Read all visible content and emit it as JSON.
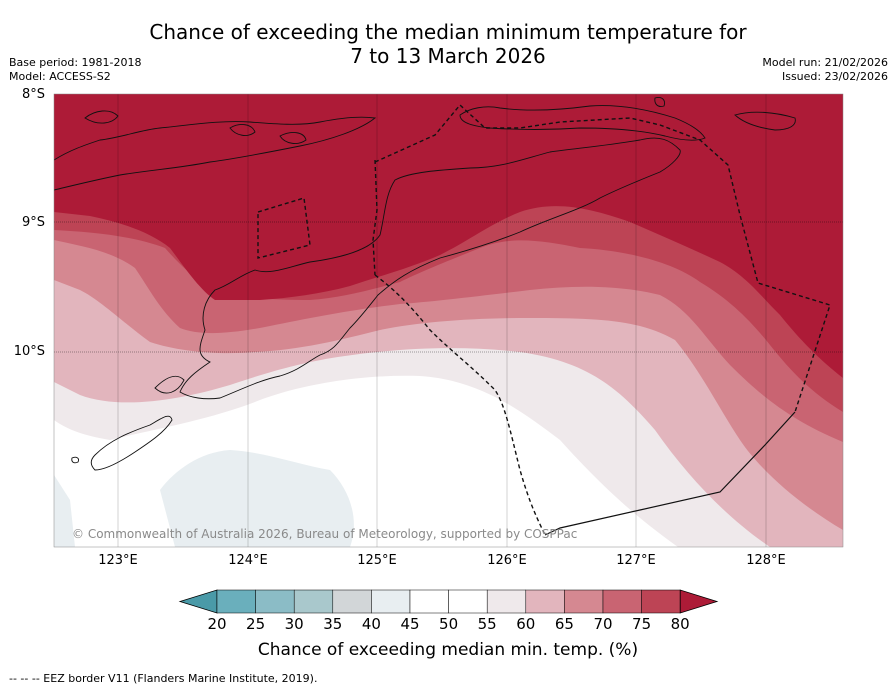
{
  "title_line1": "Chance of exceeding the median minimum temperature for",
  "title_line2": "7 to 13 March 2026",
  "meta_left": {
    "base_period": "Base period: 1981-2018",
    "model": "Model: ACCESS-S2"
  },
  "meta_right": {
    "model_run": "Model run: 21/02/2026",
    "issued": "Issued: 23/02/2026"
  },
  "lat_labels": [
    "8°S",
    "9°S",
    "10°S"
  ],
  "lon_labels": [
    "123°E",
    "124°E",
    "125°E",
    "126°E",
    "127°E",
    "128°E"
  ],
  "credit": "© Commonwealth of Australia 2026, Bureau of Meteorology, supported by COSPPac",
  "colorbar": {
    "ticks": [
      "20",
      "25",
      "30",
      "35",
      "40",
      "45",
      "50",
      "55",
      "60",
      "65",
      "70",
      "75",
      "80"
    ],
    "colors": [
      "#4a9aa8",
      "#6aafbc",
      "#8bbcc6",
      "#a9c8cc",
      "#d2d6d8",
      "#e8eef1",
      "#ffffff",
      "#ffffff",
      "#efe9eb",
      "#e2b5bd",
      "#d58891",
      "#c96472",
      "#bd4455",
      "#ad1b37"
    ],
    "title": "Chance of exceeding median min. temp. (%)"
  },
  "footer": "--  --  -- EEZ border V11 (Flanders Marine Institute, 2019)."
}
